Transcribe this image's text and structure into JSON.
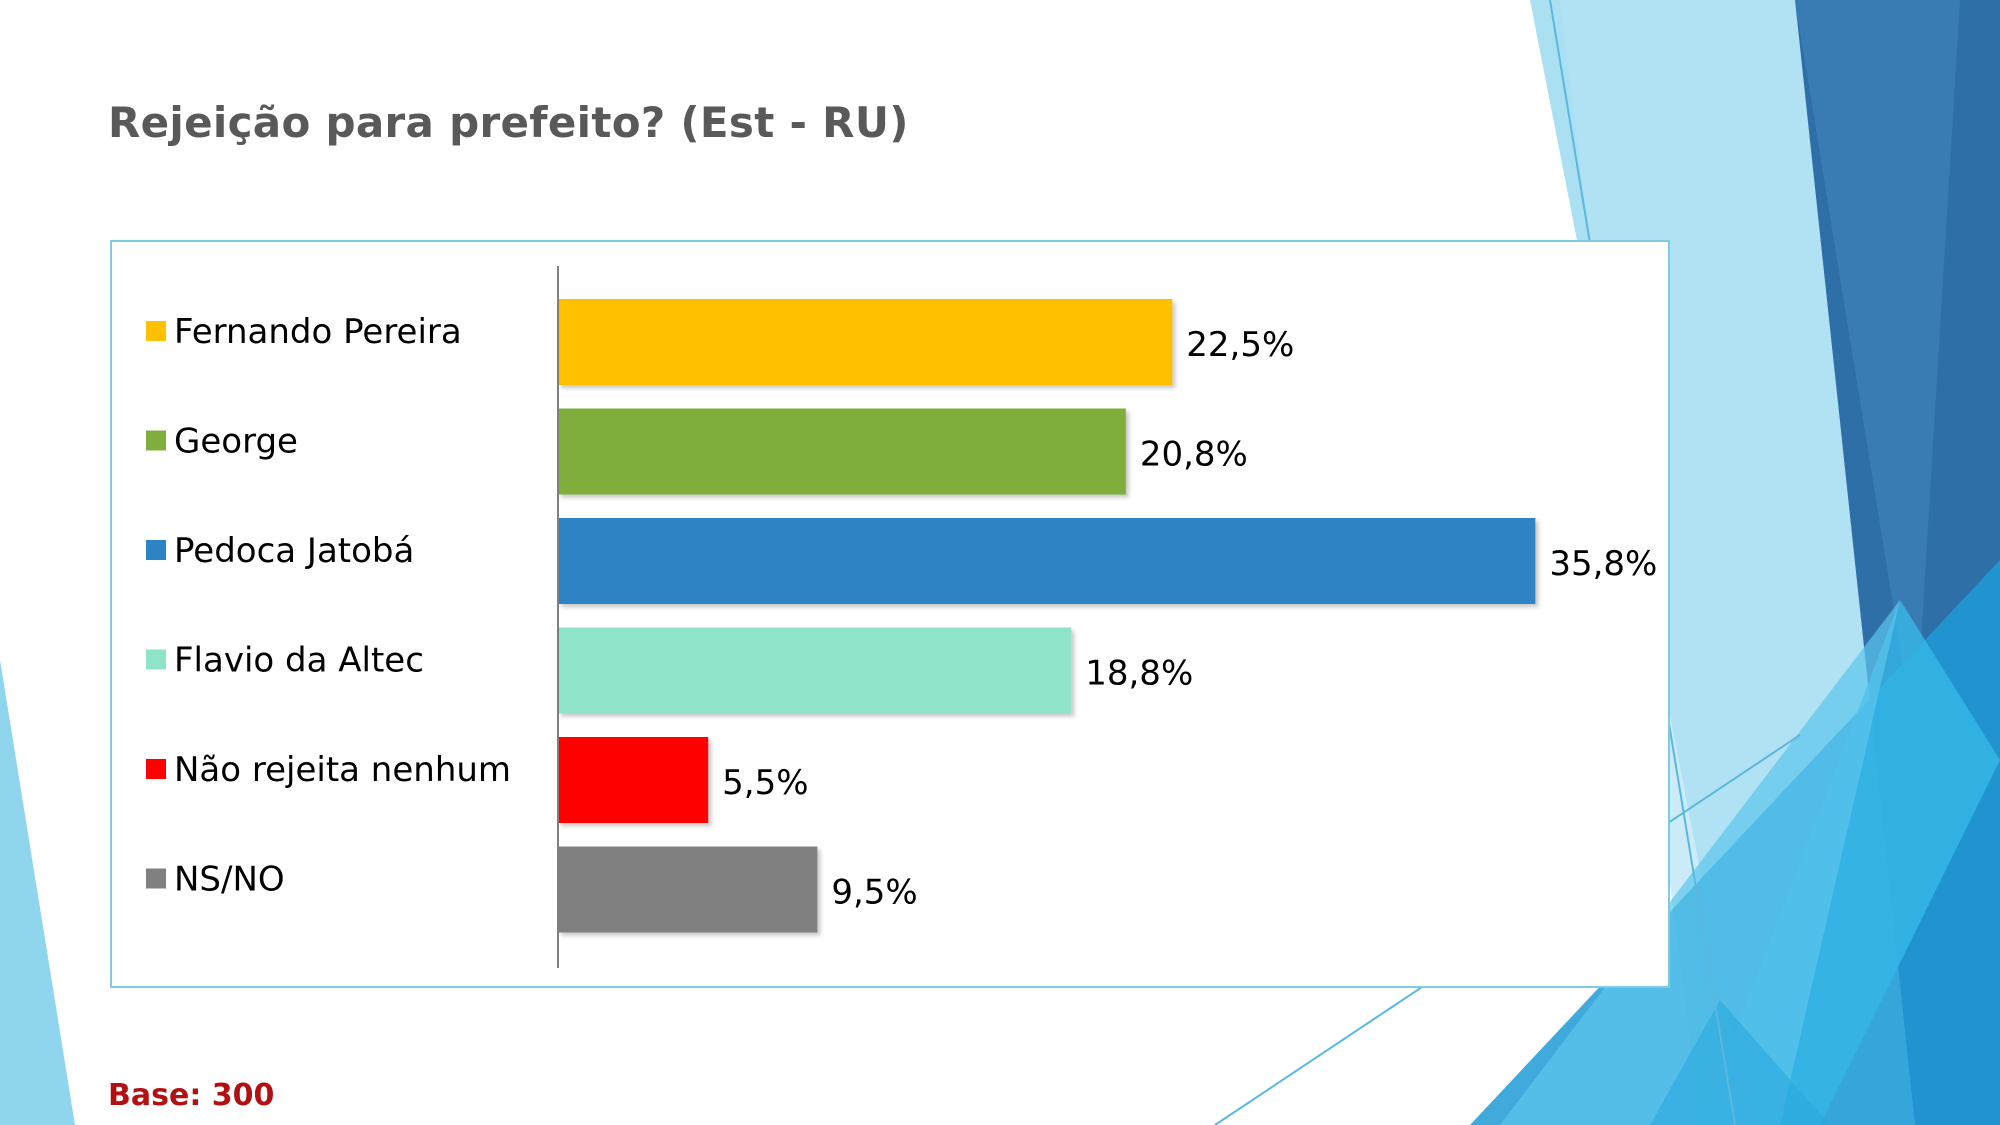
{
  "slide": {
    "title": "Rejeição para prefeito? (Est - RU)",
    "base_note": "Base: 300"
  },
  "theme": {
    "frame_border": "#7ecbe2",
    "title_color": "#595959",
    "note_color": "#b01212"
  },
  "chart_data": {
    "type": "bar",
    "orientation": "horizontal",
    "title": "Rejeição para prefeito? (Est - RU)",
    "xlabel": "",
    "ylabel": "",
    "xlim": [
      0,
      40
    ],
    "grid": false,
    "legend_position": "left",
    "value_suffix": "%",
    "categories": [
      "Fernando Pereira",
      "George",
      "Pedoca Jatobá",
      "Flavio da Altec",
      "Não rejeita nenhum",
      "NS/NO"
    ],
    "values": [
      22.5,
      20.8,
      35.8,
      18.8,
      5.5,
      9.5
    ],
    "value_labels": [
      "22,5%",
      "20,8%",
      "35,8%",
      "18,8%",
      "5,5%",
      "9,5%"
    ],
    "colors": [
      "#ffc000",
      "#7fae3e",
      "#2e83c5",
      "#8fe3c8",
      "#ff0000",
      "#808080"
    ]
  }
}
